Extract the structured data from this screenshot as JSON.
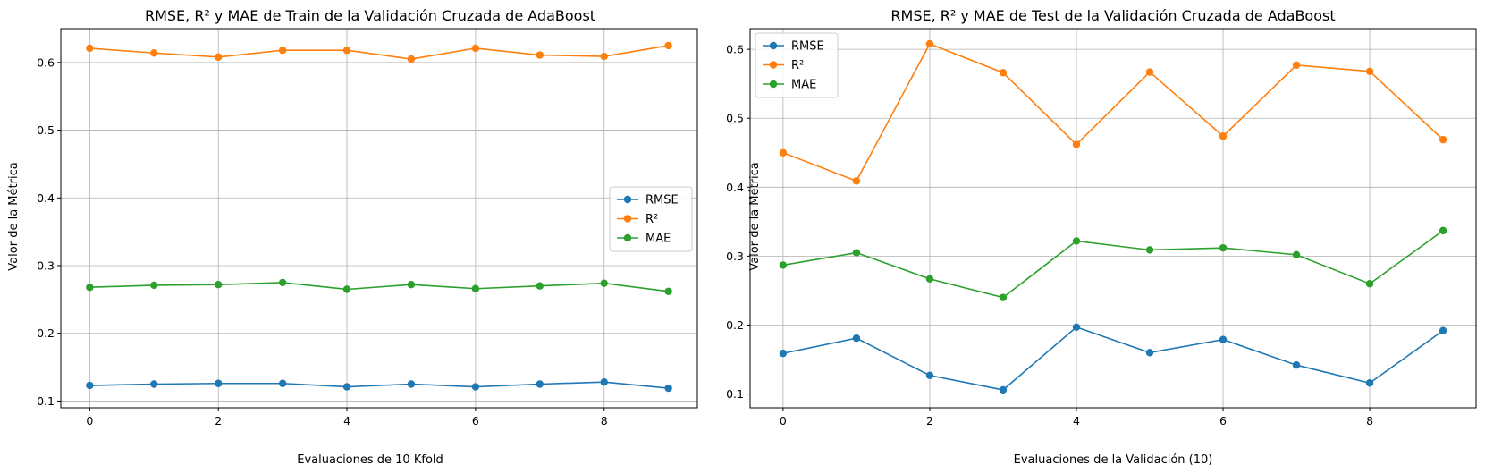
{
  "chart_data": [
    {
      "type": "line",
      "title": "RMSE, R² y MAE de Train de la Validación Cruzada de AdaBoost",
      "xlabel": "Evaluaciones de 10 Kfold",
      "ylabel": "Valor de la Métrica",
      "x": [
        0,
        1,
        2,
        3,
        4,
        5,
        6,
        7,
        8,
        9
      ],
      "xticks": [
        0,
        2,
        4,
        6,
        8
      ],
      "yticks": [
        0.1,
        0.2,
        0.3,
        0.4,
        0.5,
        0.6
      ],
      "xlim": [
        -0.45,
        9.45
      ],
      "ylim": [
        0.09,
        0.65
      ],
      "grid": true,
      "legend_position": "center-right",
      "series": [
        {
          "name": "RMSE",
          "color": "#1f77b4",
          "values": [
            0.123,
            0.125,
            0.126,
            0.126,
            0.121,
            0.125,
            0.121,
            0.125,
            0.128,
            0.119
          ]
        },
        {
          "name": "R²",
          "color": "#ff7f0e",
          "values": [
            0.621,
            0.614,
            0.608,
            0.618,
            0.618,
            0.605,
            0.621,
            0.611,
            0.609,
            0.625
          ]
        },
        {
          "name": "MAE",
          "color": "#2ca02c",
          "values": [
            0.268,
            0.271,
            0.272,
            0.275,
            0.265,
            0.272,
            0.266,
            0.27,
            0.274,
            0.262
          ]
        }
      ]
    },
    {
      "type": "line",
      "title": "RMSE, R² y MAE de Test de la Validación Cruzada de AdaBoost",
      "xlabel": "Evaluaciones de la Validación (10)",
      "ylabel": "Valor de la Métrica",
      "x": [
        0,
        1,
        2,
        3,
        4,
        5,
        6,
        7,
        8,
        9
      ],
      "xticks": [
        0,
        2,
        4,
        6,
        8
      ],
      "yticks": [
        0.1,
        0.2,
        0.3,
        0.4,
        0.5,
        0.6
      ],
      "xlim": [
        -0.45,
        9.45
      ],
      "ylim": [
        0.08,
        0.63
      ],
      "grid": true,
      "legend_position": "upper-left",
      "series": [
        {
          "name": "RMSE",
          "color": "#1f77b4",
          "values": [
            0.159,
            0.181,
            0.127,
            0.106,
            0.197,
            0.16,
            0.179,
            0.142,
            0.116,
            0.192
          ]
        },
        {
          "name": "R²",
          "color": "#ff7f0e",
          "values": [
            0.45,
            0.409,
            0.608,
            0.566,
            0.462,
            0.567,
            0.474,
            0.577,
            0.568,
            0.469
          ]
        },
        {
          "name": "MAE",
          "color": "#2ca02c",
          "values": [
            0.287,
            0.305,
            0.267,
            0.24,
            0.322,
            0.309,
            0.312,
            0.302,
            0.26,
            0.337
          ]
        }
      ]
    }
  ]
}
